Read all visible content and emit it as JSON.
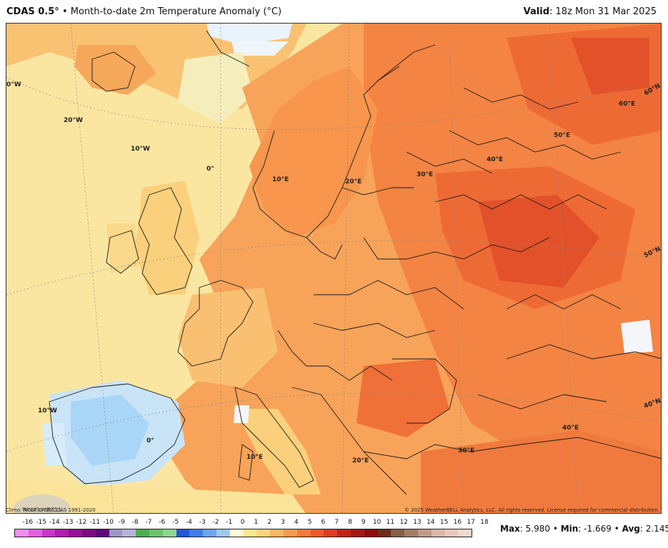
{
  "header": {
    "model": "CDAS 0.5°",
    "bullet": "•",
    "title": "Month-to-date 2m Temperature Anomaly (°C)",
    "valid_label": "Valid",
    "valid_value": ": 18z Mon 31 Mar 2025"
  },
  "grid_labels": {
    "lon_0_top": "0°W",
    "lon_20w": "20°W",
    "lon_10w_top": "10°W",
    "lon_0_mid": "0°",
    "lon_10e_top": "10°E",
    "lon_20e_top": "20°E",
    "lon_30e_top": "30°E",
    "lon_40e_top": "40°E",
    "lon_50e": "50°E",
    "lon_60e": "60°E",
    "lat_60n": "60°N",
    "lat_50n": "50°N",
    "lat_40n": "40°N",
    "lon_10w_bottom": "10°W",
    "lon_0_bottom": "0°",
    "lon_10e_bottom": "10°E",
    "lon_20e_bottom": "20°E",
    "lon_30e_bottom": "30°E",
    "lon_40e_bottom": "40°E"
  },
  "logo_text": "WeatherBELL",
  "credits": {
    "left": "Climo: NCEP CFSR/CDAS 1991-2020",
    "right": "© 2025 WeatherBELL Analytics, LLC. All rights reserved. License required for commercial distribution."
  },
  "colorbar": {
    "ticks": [
      "-16",
      "-15",
      "-14",
      "-13",
      "-12",
      "-11",
      "-10",
      "-9",
      "-8",
      "-7",
      "-6",
      "-5",
      "-4",
      "-3",
      "-2",
      "-1",
      "0",
      "1",
      "2",
      "3",
      "4",
      "5",
      "6",
      "7",
      "8",
      "9",
      "10",
      "11",
      "12",
      "13",
      "14",
      "15",
      "16",
      "17",
      "18"
    ],
    "colors": [
      "#f58cf5",
      "#e35ee0",
      "#cc35c9",
      "#b21cb0",
      "#961096",
      "#7a0a85",
      "#5e0a7a",
      "#9b95c9",
      "#b6b3d9",
      "#4caf4c",
      "#6cc46c",
      "#8fd68f",
      "#2255dd",
      "#3f7fe6",
      "#6ba6ef",
      "#9ccaf5",
      "#fdfbd6",
      "#fde68a",
      "#fbd47c",
      "#fbb863",
      "#f89a4e",
      "#f6793a",
      "#f05a2a",
      "#e03a20",
      "#c42318",
      "#a81612",
      "#8b0d0d",
      "#6e2b19",
      "#866049",
      "#a37e67",
      "#c09b88",
      "#dbb9a9",
      "#e8c7bb",
      "#f2d8cf"
    ]
  },
  "stats": {
    "max_label": "Max",
    "max_value": ": 5.980",
    "min_label": "Min",
    "min_value": ": -1.669",
    "avg_label": "Avg",
    "avg_value": ": 2.145",
    "sep": " • "
  }
}
